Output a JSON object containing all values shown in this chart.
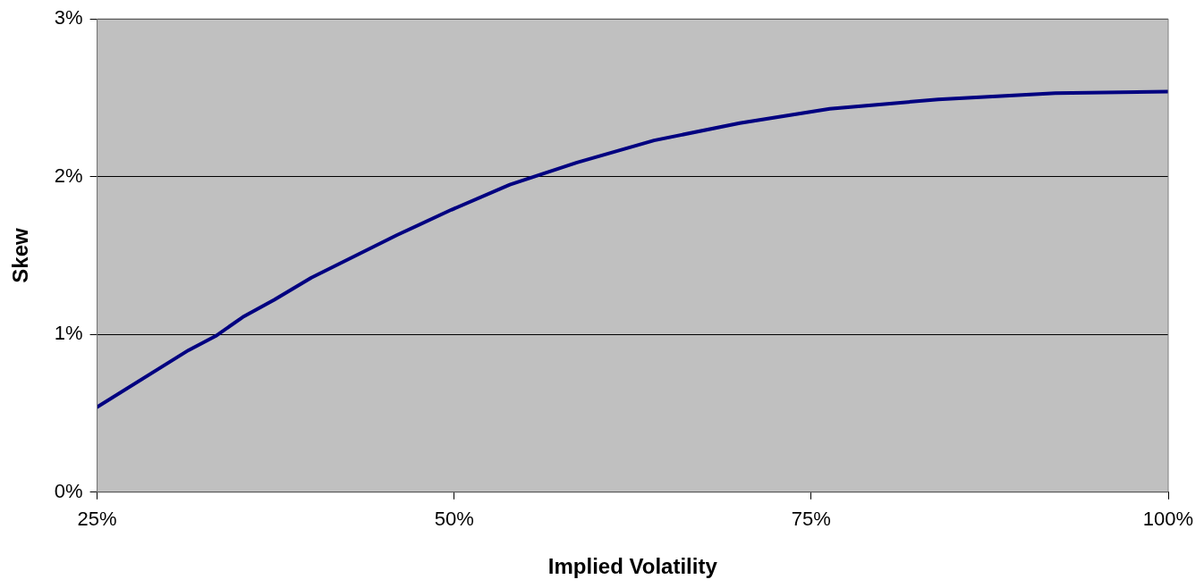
{
  "chart_data": {
    "type": "line",
    "xlabel": "Implied Volatility",
    "ylabel": "Skew",
    "x": [
      25,
      31.4,
      33.3,
      35.2,
      37.4,
      40.0,
      46.0,
      49.8,
      53.9,
      58.6,
      64.0,
      70.0,
      76.3,
      83.9,
      92.1,
      100
    ],
    "series": [
      {
        "color": "#000080",
        "values": [
          0.54,
          0.9,
          0.99,
          1.11,
          1.22,
          1.36,
          1.63,
          1.79,
          1.95,
          2.09,
          2.23,
          2.34,
          2.43,
          2.49,
          2.53,
          2.54
        ]
      }
    ],
    "xlim": [
      25,
      100
    ],
    "xticks": [
      {
        "value": 25,
        "label": "25%"
      },
      {
        "value": 50,
        "label": "50%"
      },
      {
        "value": 75,
        "label": "75%"
      },
      {
        "value": 100,
        "label": "100%"
      }
    ],
    "ylim": [
      0,
      3
    ],
    "yticks": [
      {
        "value": 0,
        "label": "0%"
      },
      {
        "value": 1,
        "label": "1%"
      },
      {
        "value": 2,
        "label": "2%"
      },
      {
        "value": 3,
        "label": "3%"
      }
    ],
    "grid": "y",
    "legend": false,
    "marker": "none",
    "line_style": "solid"
  }
}
